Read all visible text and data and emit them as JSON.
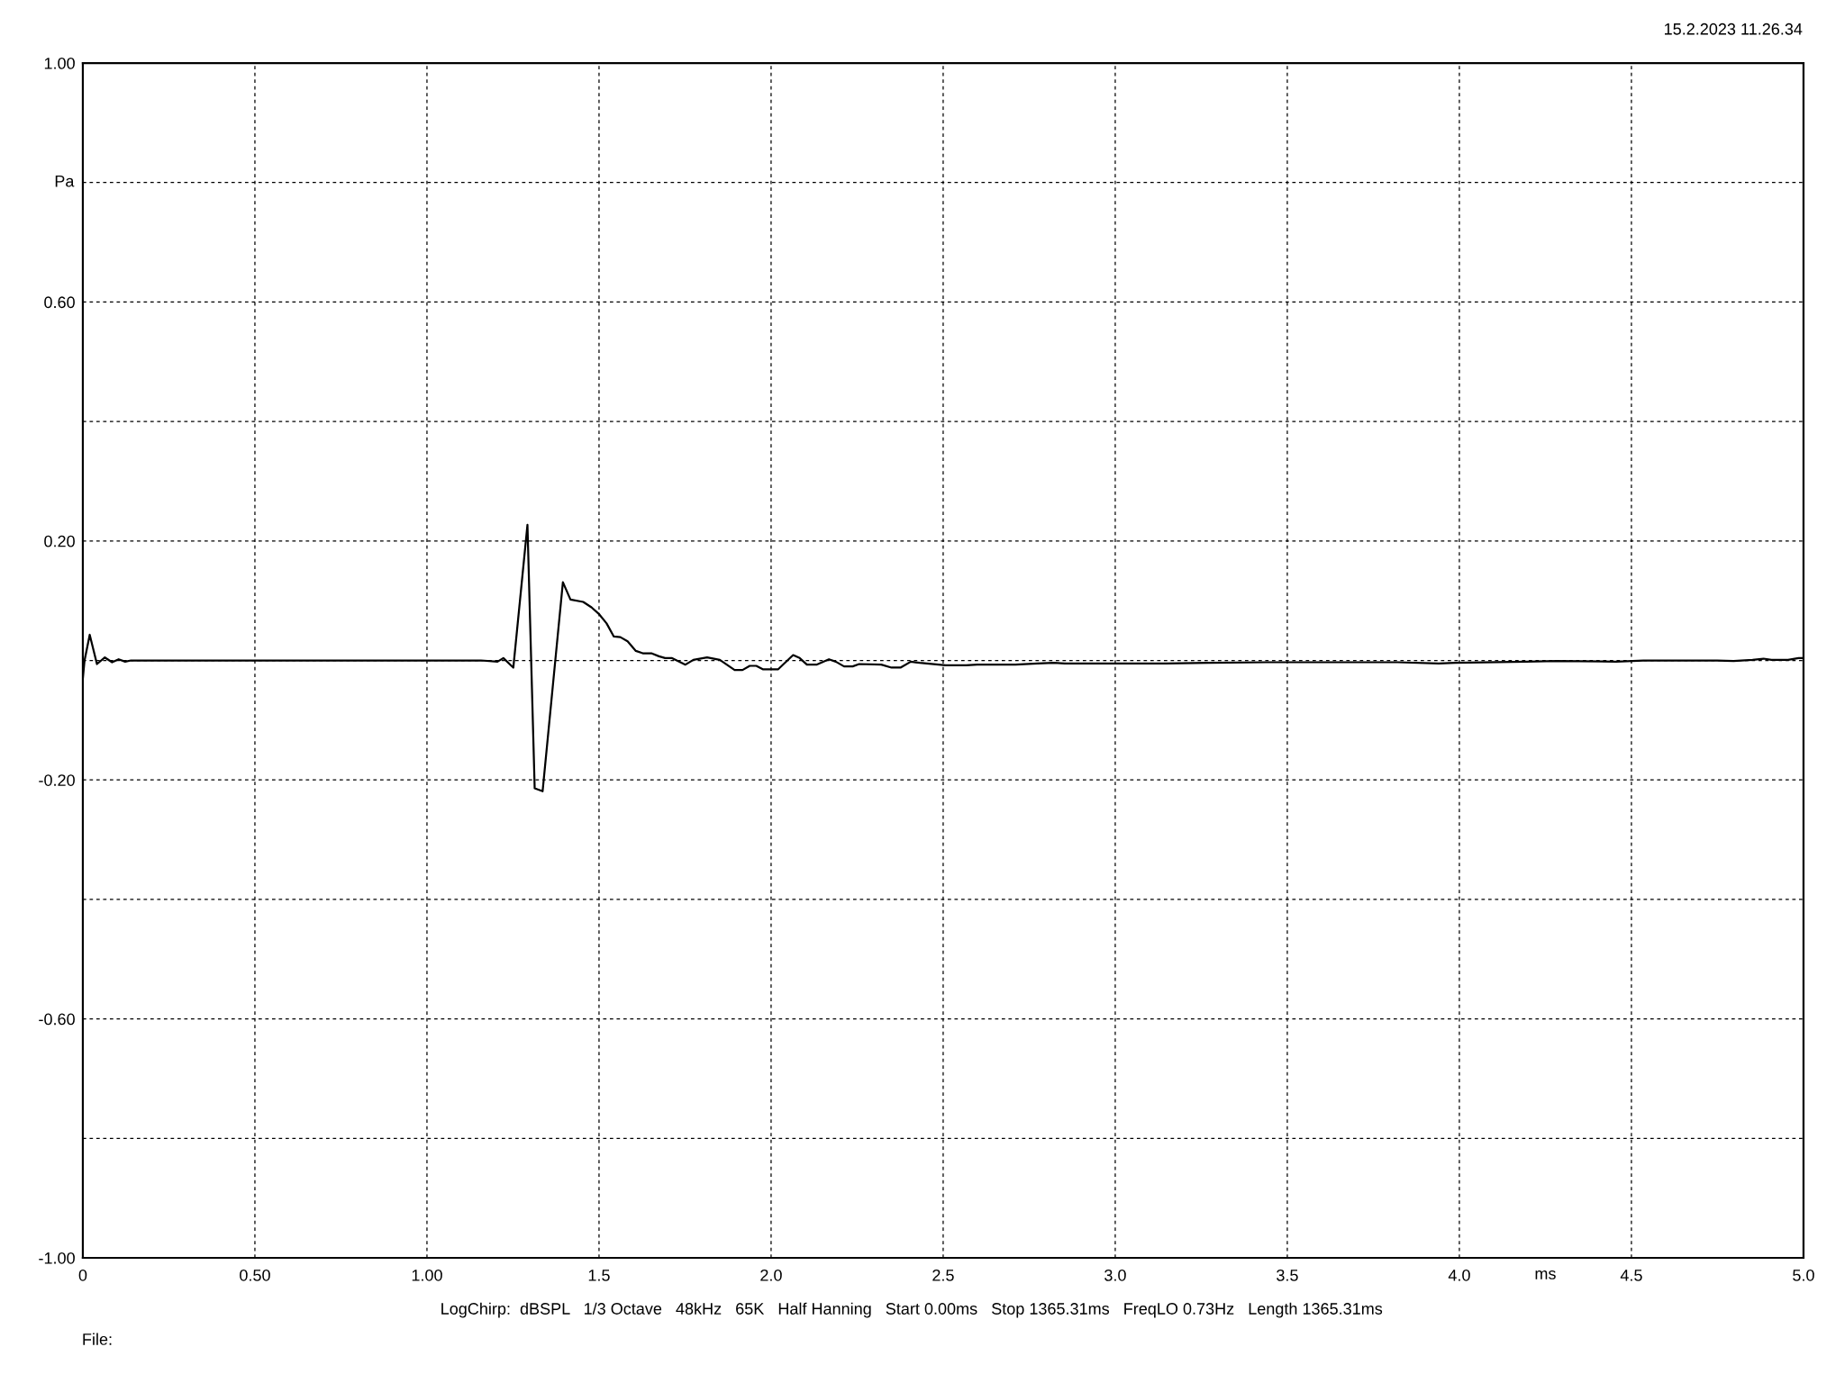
{
  "chart_data": {
    "type": "line",
    "x": [
      0,
      0.005,
      0.02,
      0.041,
      0.064,
      0.085,
      0.104,
      0.123,
      0.14,
      0.353,
      1.157,
      1.205,
      1.222,
      1.251,
      1.292,
      1.313,
      1.336,
      1.395,
      1.417,
      1.454,
      1.478,
      1.501,
      1.522,
      1.543,
      1.562,
      1.583,
      1.607,
      1.627,
      1.652,
      1.674,
      1.692,
      1.711,
      1.751,
      1.774,
      1.814,
      1.851,
      1.894,
      1.917,
      1.938,
      1.957,
      1.977,
      2.02,
      2.064,
      2.083,
      2.104,
      2.132,
      2.168,
      2.188,
      2.212,
      2.237,
      2.256,
      2.32,
      2.35,
      2.376,
      2.406,
      2.432,
      2.507,
      2.567,
      2.599,
      2.71,
      2.774,
      2.822,
      2.853,
      3.146,
      3.273,
      3.44,
      3.821,
      3.94,
      3.988,
      4.194,
      4.282,
      4.455,
      4.535,
      4.749,
      4.797,
      4.852,
      4.884,
      4.907,
      4.955,
      4.986,
      5.0
    ],
    "series": [
      {
        "color": "#000000",
        "values": [
          -0.03,
          0.0,
          0.043,
          -0.006,
          0.005,
          -0.003,
          0.002,
          -0.002,
          0.0,
          0.0,
          0.0,
          -0.002,
          0.004,
          -0.012,
          0.227,
          -0.214,
          -0.219,
          0.131,
          0.102,
          0.098,
          0.089,
          0.077,
          0.062,
          0.04,
          0.039,
          0.032,
          0.016,
          0.012,
          0.012,
          0.007,
          0.004,
          0.004,
          -0.007,
          0.001,
          0.005,
          0.001,
          -0.016,
          -0.016,
          -0.009,
          -0.009,
          -0.015,
          -0.015,
          0.009,
          0.004,
          -0.007,
          -0.007,
          0.002,
          -0.002,
          -0.01,
          -0.01,
          -0.006,
          -0.007,
          -0.012,
          -0.012,
          -0.002,
          -0.004,
          -0.008,
          -0.008,
          -0.007,
          -0.007,
          -0.005,
          -0.004,
          -0.005,
          -0.005,
          -0.004,
          -0.003,
          -0.003,
          -0.005,
          -0.004,
          -0.002,
          -0.001,
          -0.002,
          0.0,
          0.0,
          -0.001,
          0.001,
          0.003,
          0.001,
          0.001,
          0.004,
          0.004
        ]
      }
    ],
    "xlim": [
      0,
      5
    ],
    "ylim": [
      -1,
      1
    ],
    "xticks": [
      0,
      {
        "value": 0.5,
        "label": "0.50"
      },
      {
        "value": 1,
        "label": "1.00"
      },
      {
        "value": 1.5,
        "label": "1.5"
      },
      {
        "value": 2,
        "label": "2.0"
      },
      {
        "value": 2.5,
        "label": "2.5"
      },
      {
        "value": 3,
        "label": "3.0"
      },
      {
        "value": 3.5,
        "label": "3.5"
      },
      {
        "value": 4,
        "label": "4.0"
      },
      {
        "value": 4.5,
        "label": "4.5"
      },
      {
        "value": 5,
        "label": "5.0"
      }
    ],
    "yticks": [
      {
        "value": 1,
        "label": "1.00"
      },
      {
        "value": 0.8,
        "label": null
      },
      {
        "value": 0.6,
        "label": "0.60"
      },
      {
        "value": 0.4,
        "label": null
      },
      {
        "value": 0.2,
        "label": "0.20"
      },
      {
        "value": 0,
        "label": null
      },
      {
        "value": -0.2,
        "label": "-0.20"
      },
      {
        "value": -0.4,
        "label": null
      },
      {
        "value": -0.6,
        "label": "-0.60"
      },
      {
        "value": -0.8,
        "label": null
      },
      {
        "value": -1,
        "label": "-1.00"
      }
    ],
    "xlabel": "ms",
    "ylabel": "Pa",
    "grid": true,
    "line_style": "solid",
    "marker": "none",
    "annotations": [
      "15.2.2023 11.26.34",
      "LogChirp:  dBSPL   1/3 Octave   48kHz   65K   Half Hanning   Start 0.00ms   Stop 1365.31ms   FreqLO 0.73Hz   Length 1365.31ms",
      "File:"
    ]
  }
}
